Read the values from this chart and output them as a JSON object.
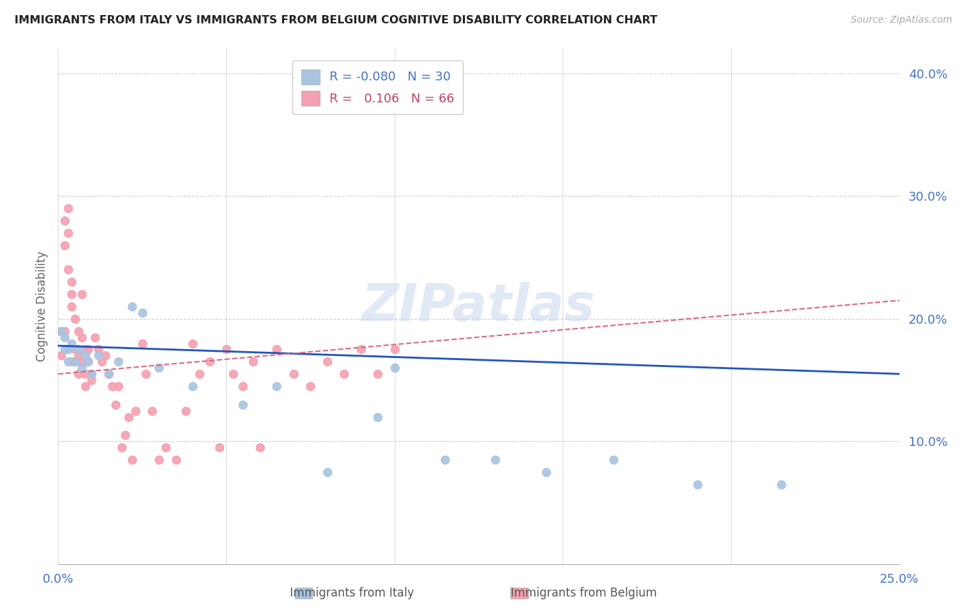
{
  "title": "IMMIGRANTS FROM ITALY VS IMMIGRANTS FROM BELGIUM COGNITIVE DISABILITY CORRELATION CHART",
  "source": "Source: ZipAtlas.com",
  "xlabel_italy": "Immigrants from Italy",
  "xlabel_belgium": "Immigrants from Belgium",
  "ylabel": "Cognitive Disability",
  "xlim": [
    0.0,
    0.25
  ],
  "ylim": [
    0.0,
    0.42
  ],
  "yticks": [
    0.1,
    0.2,
    0.3,
    0.4
  ],
  "ytick_labels": [
    "10.0%",
    "20.0%",
    "30.0%",
    "40.0%"
  ],
  "xticks": [
    0.0,
    0.05,
    0.1,
    0.15,
    0.2,
    0.25
  ],
  "xtick_labels": [
    "0.0%",
    "",
    "",
    "",
    "",
    "25.0%"
  ],
  "italy_color": "#a8c4e0",
  "belgium_color": "#f4a0b0",
  "italy_line_color": "#2255bb",
  "belgium_line_color": "#dd6688",
  "legend_R_italy": "-0.080",
  "legend_N_italy": "30",
  "legend_R_belgium": "0.106",
  "legend_N_belgium": "66",
  "watermark": "ZIPatlas",
  "italy_scatter_x": [
    0.001,
    0.002,
    0.002,
    0.003,
    0.003,
    0.004,
    0.005,
    0.006,
    0.007,
    0.008,
    0.009,
    0.01,
    0.012,
    0.015,
    0.018,
    0.022,
    0.025,
    0.03,
    0.04,
    0.055,
    0.065,
    0.08,
    0.095,
    0.1,
    0.115,
    0.13,
    0.145,
    0.165,
    0.19,
    0.215
  ],
  "italy_scatter_y": [
    0.19,
    0.175,
    0.185,
    0.175,
    0.165,
    0.18,
    0.165,
    0.175,
    0.16,
    0.17,
    0.165,
    0.155,
    0.17,
    0.155,
    0.165,
    0.21,
    0.205,
    0.16,
    0.145,
    0.13,
    0.145,
    0.075,
    0.12,
    0.16,
    0.085,
    0.085,
    0.075,
    0.085,
    0.065,
    0.065
  ],
  "belgium_scatter_x": [
    0.001,
    0.001,
    0.002,
    0.002,
    0.002,
    0.003,
    0.003,
    0.003,
    0.003,
    0.004,
    0.004,
    0.004,
    0.004,
    0.005,
    0.005,
    0.005,
    0.006,
    0.006,
    0.006,
    0.007,
    0.007,
    0.007,
    0.008,
    0.008,
    0.008,
    0.009,
    0.009,
    0.01,
    0.01,
    0.011,
    0.012,
    0.013,
    0.014,
    0.015,
    0.016,
    0.017,
    0.018,
    0.019,
    0.02,
    0.021,
    0.022,
    0.023,
    0.025,
    0.026,
    0.028,
    0.03,
    0.032,
    0.035,
    0.038,
    0.04,
    0.042,
    0.045,
    0.048,
    0.05,
    0.052,
    0.055,
    0.058,
    0.06,
    0.065,
    0.07,
    0.075,
    0.08,
    0.085,
    0.09,
    0.095,
    0.1
  ],
  "belgium_scatter_y": [
    0.19,
    0.17,
    0.28,
    0.26,
    0.19,
    0.29,
    0.27,
    0.24,
    0.175,
    0.23,
    0.22,
    0.21,
    0.165,
    0.2,
    0.175,
    0.165,
    0.19,
    0.17,
    0.155,
    0.165,
    0.22,
    0.185,
    0.175,
    0.155,
    0.145,
    0.175,
    0.165,
    0.155,
    0.15,
    0.185,
    0.175,
    0.165,
    0.17,
    0.155,
    0.145,
    0.13,
    0.145,
    0.095,
    0.105,
    0.12,
    0.085,
    0.125,
    0.18,
    0.155,
    0.125,
    0.085,
    0.095,
    0.085,
    0.125,
    0.18,
    0.155,
    0.165,
    0.095,
    0.175,
    0.155,
    0.145,
    0.165,
    0.095,
    0.175,
    0.155,
    0.145,
    0.165,
    0.155,
    0.175,
    0.155,
    0.175
  ],
  "italy_line_x": [
    0.0,
    0.25
  ],
  "italy_line_y": [
    0.178,
    0.155
  ],
  "belgium_line_x": [
    0.0,
    0.25
  ],
  "belgium_line_y": [
    0.155,
    0.215
  ]
}
